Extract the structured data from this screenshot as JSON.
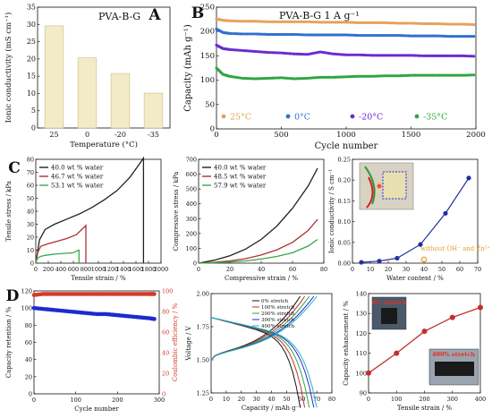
{
  "panels": [
    {
      "letter": "A",
      "text": "PVA-B-G"
    },
    {
      "letter": "B",
      "text": "PVA-B-G     1 A g⁻¹"
    },
    {
      "letter": "C"
    },
    {
      "letter": "D"
    }
  ],
  "photo_labels": {
    "c3": "",
    "d3_top": "0% stretch",
    "d3_bottom": "400% stretch"
  },
  "chart_data": [
    {
      "id": "A",
      "type": "bar",
      "categories": [
        "25",
        "0",
        "-20",
        "-35"
      ],
      "values": [
        29.6,
        20.3,
        15.8,
        10.1
      ],
      "xlabel": "Temperature (°C)",
      "ylabel": "Ionic conductivity (mS cm⁻¹)",
      "ylim": [
        0,
        35
      ],
      "yticks": [
        "0",
        "5",
        "10",
        "15",
        "20",
        "25",
        "30",
        "35"
      ],
      "bar_color": "#f2ebc7"
    },
    {
      "id": "B",
      "type": "scatter",
      "xlabel": "Cycle number",
      "ylabel": "Capacity (mAh g⁻¹)",
      "xlim": [
        0,
        2000
      ],
      "ylim": [
        0,
        250
      ],
      "xticks": [
        "0",
        "500",
        "1000",
        "1500",
        "2000"
      ],
      "yticks": [
        "0",
        "50",
        "100",
        "150",
        "200",
        "250"
      ],
      "series": [
        {
          "name": "25°C",
          "color": "#e8a05c",
          "x": [
            0,
            50,
            100,
            200,
            300,
            400,
            500,
            600,
            700,
            800,
            900,
            1000,
            1100,
            1200,
            1300,
            1400,
            1500,
            1600,
            1700,
            1800,
            1900,
            2000
          ],
          "y": [
            226,
            223,
            222,
            221,
            221,
            220,
            220,
            220,
            220,
            219,
            219,
            219,
            218,
            218,
            218,
            217,
            217,
            216,
            216,
            215,
            215,
            214
          ]
        },
        {
          "name": "0°C",
          "color": "#2f6fd1",
          "x": [
            0,
            50,
            100,
            200,
            300,
            400,
            500,
            600,
            700,
            800,
            900,
            1000,
            1100,
            1200,
            1300,
            1400,
            1500,
            1600,
            1700,
            1800,
            1900,
            2000
          ],
          "y": [
            205,
            198,
            196,
            195,
            195,
            194,
            194,
            194,
            193,
            193,
            193,
            193,
            192,
            192,
            192,
            192,
            191,
            191,
            191,
            190,
            190,
            190
          ]
        },
        {
          "name": "-20°C",
          "color": "#6a2ad1",
          "x": [
            0,
            50,
            100,
            200,
            300,
            400,
            500,
            600,
            700,
            800,
            900,
            1000,
            1100,
            1200,
            1300,
            1400,
            1500,
            1600,
            1700,
            1800,
            1900,
            2000
          ],
          "y": [
            172,
            165,
            163,
            161,
            159,
            157,
            156,
            154,
            153,
            158,
            154,
            152,
            152,
            151,
            151,
            151,
            151,
            150,
            150,
            150,
            150,
            149
          ]
        },
        {
          "name": "-35°C",
          "color": "#2ea640",
          "x": [
            0,
            50,
            100,
            200,
            300,
            400,
            500,
            600,
            700,
            800,
            900,
            1000,
            1100,
            1200,
            1300,
            1400,
            1500,
            1600,
            1700,
            1800,
            1900,
            2000
          ],
          "y": [
            125,
            112,
            108,
            104,
            103,
            104,
            105,
            103,
            104,
            106,
            106,
            107,
            108,
            108,
            109,
            109,
            110,
            110,
            110,
            110,
            110,
            111
          ]
        }
      ]
    },
    {
      "id": "C1",
      "type": "line",
      "xlabel": "Tensile strain / %",
      "ylabel": "Tensile stress / kPa",
      "xlim": [
        0,
        2000
      ],
      "ylim": [
        0,
        80
      ],
      "xticks": [
        "0",
        "200",
        "400",
        "600",
        "800",
        "1000",
        "1200",
        "1400",
        "1600",
        "1800",
        "2000"
      ],
      "yticks": [
        "0",
        "10",
        "20",
        "30",
        "40",
        "50",
        "60",
        "70",
        "80"
      ],
      "series": [
        {
          "name": "40.0 wt % water",
          "color": "#222222",
          "x": [
            0,
            60,
            150,
            300,
            500,
            700,
            900,
            1100,
            1300,
            1500,
            1650,
            1720,
            1720
          ],
          "y": [
            0,
            18,
            26,
            30,
            34,
            38,
            43,
            49,
            56,
            66,
            76,
            81,
            0
          ]
        },
        {
          "name": "46.7 wt % water",
          "color": "#b03030",
          "x": [
            0,
            30,
            80,
            200,
            350,
            500,
            650,
            780,
            800,
            800
          ],
          "y": [
            0,
            8,
            13,
            15,
            17,
            19,
            22,
            28,
            29,
            0
          ]
        },
        {
          "name": "53.1 wt % water",
          "color": "#3aa64a",
          "x": [
            0,
            20,
            60,
            150,
            300,
            450,
            600,
            680,
            690,
            690
          ],
          "y": [
            0,
            3,
            5,
            6,
            7,
            7.5,
            8,
            10,
            10,
            0
          ]
        }
      ]
    },
    {
      "id": "C2",
      "type": "line",
      "xlabel": "Compressive strain / %",
      "ylabel": "Compressive stress / kPa",
      "xlim": [
        0,
        80
      ],
      "ylim": [
        0,
        700
      ],
      "xticks": [
        "0",
        "20",
        "40",
        "60",
        "80"
      ],
      "yticks": [
        "0",
        "100",
        "200",
        "300",
        "400",
        "500",
        "600",
        "700"
      ],
      "series": [
        {
          "name": "40.0 wt % water",
          "color": "#222222",
          "x": [
            0,
            10,
            20,
            30,
            40,
            50,
            60,
            70,
            76
          ],
          "y": [
            0,
            20,
            50,
            95,
            160,
            250,
            370,
            520,
            640
          ]
        },
        {
          "name": "48.5 wt % water",
          "color": "#b03030",
          "x": [
            0,
            10,
            20,
            30,
            40,
            50,
            60,
            70,
            76
          ],
          "y": [
            0,
            6,
            15,
            30,
            55,
            90,
            140,
            220,
            295
          ]
        },
        {
          "name": "57.9 wt % water",
          "color": "#3aa64a",
          "x": [
            0,
            10,
            20,
            30,
            40,
            50,
            60,
            70,
            76
          ],
          "y": [
            0,
            3,
            8,
            15,
            28,
            45,
            70,
            115,
            160
          ]
        }
      ]
    },
    {
      "id": "C3",
      "type": "line",
      "xlabel": "Water content / %",
      "ylabel": "Ionic conductivity / S cm⁻¹",
      "xlim": [
        0,
        70
      ],
      "ylim": [
        0,
        0.25
      ],
      "xticks": [
        "0",
        "10",
        "20",
        "30",
        "40",
        "50",
        "60",
        "70"
      ],
      "yticks": [
        "0.00",
        "0.05",
        "0.10",
        "0.15",
        "0.20",
        "0.25"
      ],
      "series": [
        {
          "name": "",
          "color": "#2030a0",
          "x": [
            5,
            15,
            25,
            38,
            52,
            65
          ],
          "y": [
            0.002,
            0.005,
            0.012,
            0.045,
            0.12,
            0.205
          ]
        },
        {
          "name": "without OH⁻ and Zn²⁺",
          "color": "#e0a030",
          "x": [
            40
          ],
          "y": [
            0.0
          ]
        }
      ]
    },
    {
      "id": "D1",
      "type": "scatter",
      "xlabel": "Cycle number",
      "ylabel": "Capacity retention / %",
      "ylabel2": "Coulombic efficiency / %",
      "xlim": [
        0,
        350
      ],
      "ylim": [
        0,
        120
      ],
      "ylim2": [
        0,
        100
      ],
      "xticks": [
        "0",
        "100",
        "200",
        "300"
      ],
      "yticks": [
        "0",
        "20",
        "40",
        "60",
        "80",
        "100",
        "120"
      ],
      "yticks2": [
        "0",
        "20",
        "40",
        "60",
        "80",
        "100"
      ],
      "series": [
        {
          "name": "Capacity retention",
          "color": "#1d2ad0",
          "x": [
            0,
            25,
            50,
            75,
            100,
            125,
            150,
            175,
            200,
            225,
            250,
            275,
            300,
            325,
            340
          ],
          "y": [
            100,
            99,
            98,
            97,
            96,
            95,
            94,
            93,
            93,
            92,
            91,
            90,
            89,
            88,
            87
          ]
        },
        {
          "name": "Coulombic efficiency",
          "color": "#d43a2a",
          "x": [
            0,
            25,
            50,
            75,
            100,
            125,
            150,
            175,
            200,
            225,
            250,
            275,
            300,
            325,
            340
          ],
          "y": [
            96,
            97,
            97,
            97,
            97,
            97,
            97,
            97,
            97,
            97,
            97,
            97,
            97,
            97,
            97
          ]
        }
      ]
    },
    {
      "id": "D2",
      "type": "line",
      "xlabel": "Capacity / mAh g⁻¹",
      "ylabel": "Voltage / V",
      "xlim": [
        0,
        80
      ],
      "ylim": [
        1.25,
        2.0
      ],
      "xticks": [
        "0",
        "10",
        "20",
        "30",
        "40",
        "50",
        "60",
        "70",
        "80"
      ],
      "yticks": [
        "1.25",
        "1.50",
        "1.75",
        "2.00"
      ],
      "series": [
        {
          "name": "0% stretch",
          "color": "#111111",
          "cap": 59
        },
        {
          "name": "100% stretch",
          "color": "#c03030",
          "cap": 62
        },
        {
          "name": "200% stretch",
          "color": "#2ea640",
          "cap": 65
        },
        {
          "name": "300% stretch",
          "color": "#1d2ad0",
          "cap": 68
        },
        {
          "name": "400% stretch",
          "color": "#25b0c8",
          "cap": 70
        }
      ]
    },
    {
      "id": "D3",
      "type": "line",
      "xlabel": "Tensile strain / %",
      "ylabel": "Capacity enhancement / %",
      "xlim": [
        0,
        400
      ],
      "ylim": [
        90,
        140
      ],
      "xticks": [
        "0",
        "100",
        "200",
        "300",
        "400"
      ],
      "yticks": [
        "90",
        "100",
        "110",
        "120",
        "130",
        "140"
      ],
      "series": [
        {
          "name": "",
          "color": "#c0302a",
          "x": [
            0,
            100,
            200,
            300,
            400
          ],
          "y": [
            100,
            110,
            121,
            128,
            133
          ]
        }
      ]
    }
  ]
}
